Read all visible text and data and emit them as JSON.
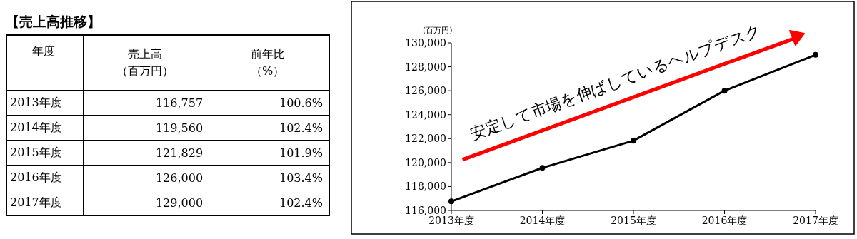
{
  "chart_data": {
    "type": "line",
    "title": "【売上高推移】",
    "ylabel": "(百万円)",
    "categories": [
      "2013年度",
      "2014年度",
      "2015年度",
      "2016年度",
      "2017年度"
    ],
    "series": [
      {
        "color": "#000000",
        "values": [
          116757,
          119560,
          121829,
          126000,
          129000
        ]
      }
    ],
    "ylim": [
      116000,
      130000
    ],
    "yticks": [
      {
        "value": 116000,
        "label": "116,000"
      },
      {
        "value": 118000,
        "label": "118,000"
      },
      {
        "value": 120000,
        "label": "120,000"
      },
      {
        "value": 122000,
        "label": "122,000"
      },
      {
        "value": 124000,
        "label": "124,000"
      },
      {
        "value": 126000,
        "label": "126,000"
      },
      {
        "value": 128000,
        "label": "128,000"
      },
      {
        "value": 130000,
        "label": "130,000"
      }
    ],
    "marker": "circle",
    "annotations": [
      "年度",
      "売上高（百万円）",
      "前年比（%）",
      "116,757",
      "100.6%",
      "119,560",
      "102.4%",
      "121,829",
      "101.9%",
      "126,000",
      "103.4%",
      "129,000",
      "102.4%",
      "安定して市場を伸ばしているヘルプデスク"
    ]
  }
}
